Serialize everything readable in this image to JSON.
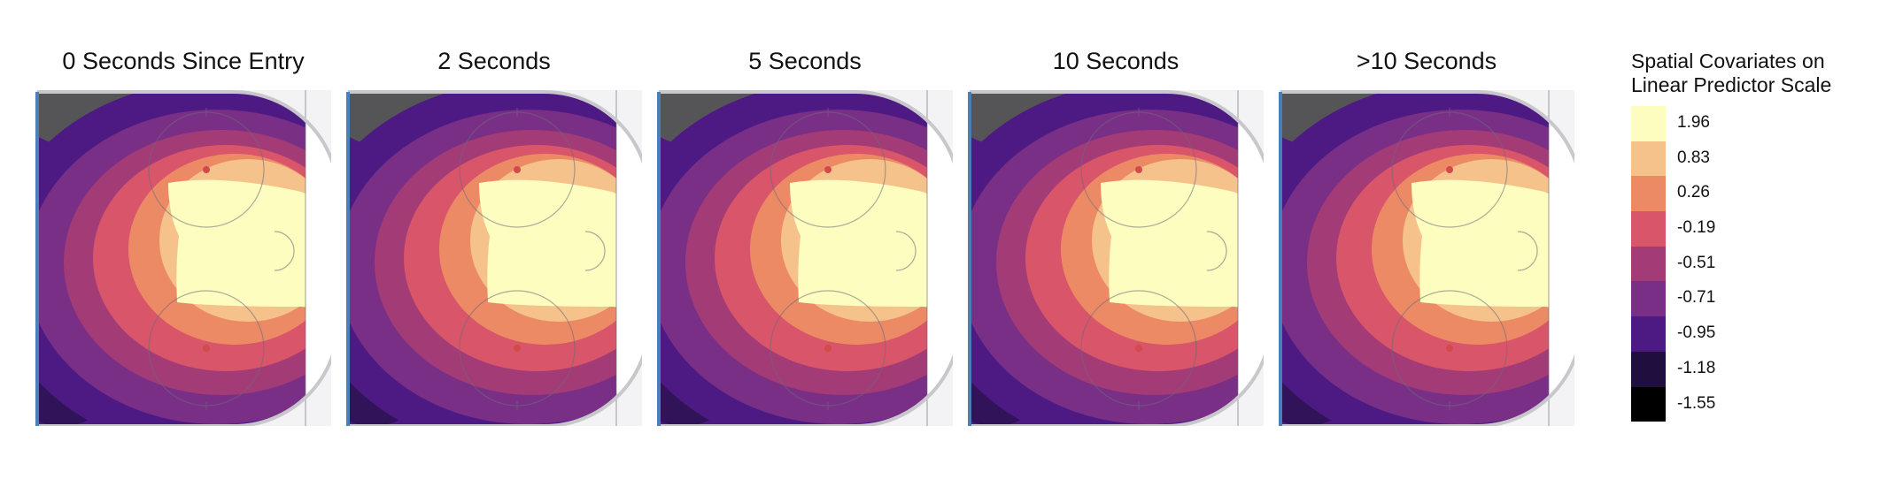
{
  "chart_data": [
    {
      "type": "heatmap",
      "title": "0 Seconds Since Entry"
    },
    {
      "type": "heatmap",
      "title": "2 Seconds"
    },
    {
      "type": "heatmap",
      "title": "5 Seconds"
    },
    {
      "type": "heatmap",
      "title": "10 Seconds"
    },
    {
      "type": "heatmap",
      "title": ">10 Seconds"
    }
  ],
  "legend": {
    "title_lines": [
      "Spatial Covariates on",
      "Linear Predictor Scale"
    ],
    "levels": [
      {
        "label": "1.96",
        "color": "#fcfdbf"
      },
      {
        "label": "0.83",
        "color": "#f5c28c"
      },
      {
        "label": "0.26",
        "color": "#ec8a66"
      },
      {
        "label": "-0.19",
        "color": "#d8556a"
      },
      {
        "label": "-0.51",
        "color": "#a33b77"
      },
      {
        "label": "-0.71",
        "color": "#7a2f86"
      },
      {
        "label": "-0.95",
        "color": "#4d1a83"
      },
      {
        "label": "-1.18",
        "color": "#1f0f3f"
      },
      {
        "label": "-1.55",
        "color": "#000000"
      }
    ]
  }
}
